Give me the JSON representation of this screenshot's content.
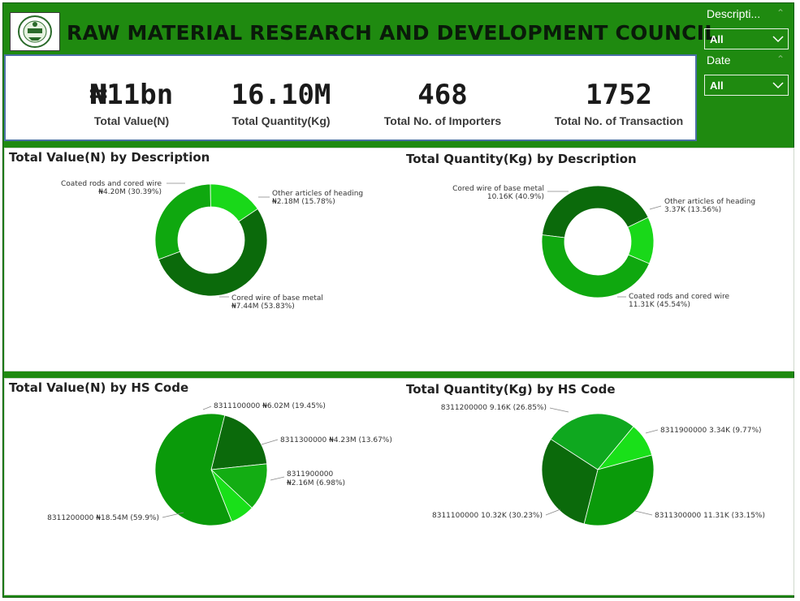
{
  "header": {
    "title": "RAW MATERIAL RESEARCH AND DEVELOPMENT COUNCIL"
  },
  "kpis": [
    {
      "value": "₦11bn",
      "label": "Total Value(N)"
    },
    {
      "value": "16.10M",
      "label": "Total Quantity(Kg)"
    },
    {
      "value": "468",
      "label": "Total No. of Importers"
    },
    {
      "value": "1752",
      "label": "Total No. of Transaction"
    }
  ],
  "slicers": {
    "description": {
      "label": "Descripti...",
      "value": "All"
    },
    "date": {
      "label": "Date",
      "value": "All"
    }
  },
  "colors": {
    "frame": "#1f8a10",
    "slice_dark": "#0b6a0b",
    "slice_mid": "#13a413",
    "slice_light": "#19d319",
    "slice_main": "#0a9a0a"
  },
  "chart_data": [
    {
      "type": "pie",
      "variant": "donut",
      "title": "Total Value(N) by Description",
      "slices": [
        {
          "name": "Cored wire of base metal",
          "value": 7.44,
          "label": "₦7.44M (53.83%)",
          "percent": 53.83,
          "color": "#0b6a0b"
        },
        {
          "name": "Coated rods and cored wire",
          "value": 4.2,
          "label": "₦4.20M (30.39%)",
          "percent": 30.39,
          "color": "#0fa80f"
        },
        {
          "name": "Other articles of heading",
          "value": 2.18,
          "label": "₦2.18M (15.78%)",
          "percent": 15.78,
          "color": "#19d819"
        }
      ]
    },
    {
      "type": "pie",
      "variant": "donut",
      "title": "Total Quantity(Kg) by Description",
      "slices": [
        {
          "name": "Cored wire of base metal",
          "value": 10.16,
          "label": "10.16K (40.9%)",
          "percent": 40.9,
          "color": "#0b6a0b"
        },
        {
          "name": "Other articles of heading",
          "value": 3.37,
          "label": "3.37K (13.56%)",
          "percent": 13.56,
          "color": "#19d819"
        },
        {
          "name": "Coated rods and cored wire",
          "value": 11.31,
          "label": "11.31K (45.54%)",
          "percent": 45.54,
          "color": "#0fa80f"
        }
      ]
    },
    {
      "type": "pie",
      "title": "Total Value(N) by HS Code",
      "slices": [
        {
          "name": "8311200000",
          "value": 18.54,
          "label": "₦18.54M (59.9%)",
          "percent": 59.9,
          "color": "#0a9a0a"
        },
        {
          "name": "8311100000",
          "value": 6.02,
          "label": "₦6.02M (19.45%)",
          "percent": 19.45,
          "color": "#0b6a0b"
        },
        {
          "name": "8311300000",
          "value": 4.23,
          "label": "₦4.23M (13.67%)",
          "percent": 13.67,
          "color": "#13ad13"
        },
        {
          "name": "8311900000",
          "value": 2.16,
          "label": "₦2.16M (6.98%)",
          "percent": 6.98,
          "color": "#19e019"
        }
      ]
    },
    {
      "type": "pie",
      "title": "Total Quantity(Kg) by HS Code",
      "slices": [
        {
          "name": "8311200000",
          "value": 9.16,
          "label": "9.16K (26.85%)",
          "percent": 26.85,
          "color": "#0fa81f"
        },
        {
          "name": "8311900000",
          "value": 3.34,
          "label": "3.34K (9.77%)",
          "percent": 9.77,
          "color": "#19e019"
        },
        {
          "name": "8311300000",
          "value": 11.31,
          "label": "11.31K (33.15%)",
          "percent": 33.15,
          "color": "#0a9a0a"
        },
        {
          "name": "8311100000",
          "value": 10.32,
          "label": "10.32K (30.23%)",
          "percent": 30.23,
          "color": "#0b6a0b"
        }
      ]
    }
  ]
}
